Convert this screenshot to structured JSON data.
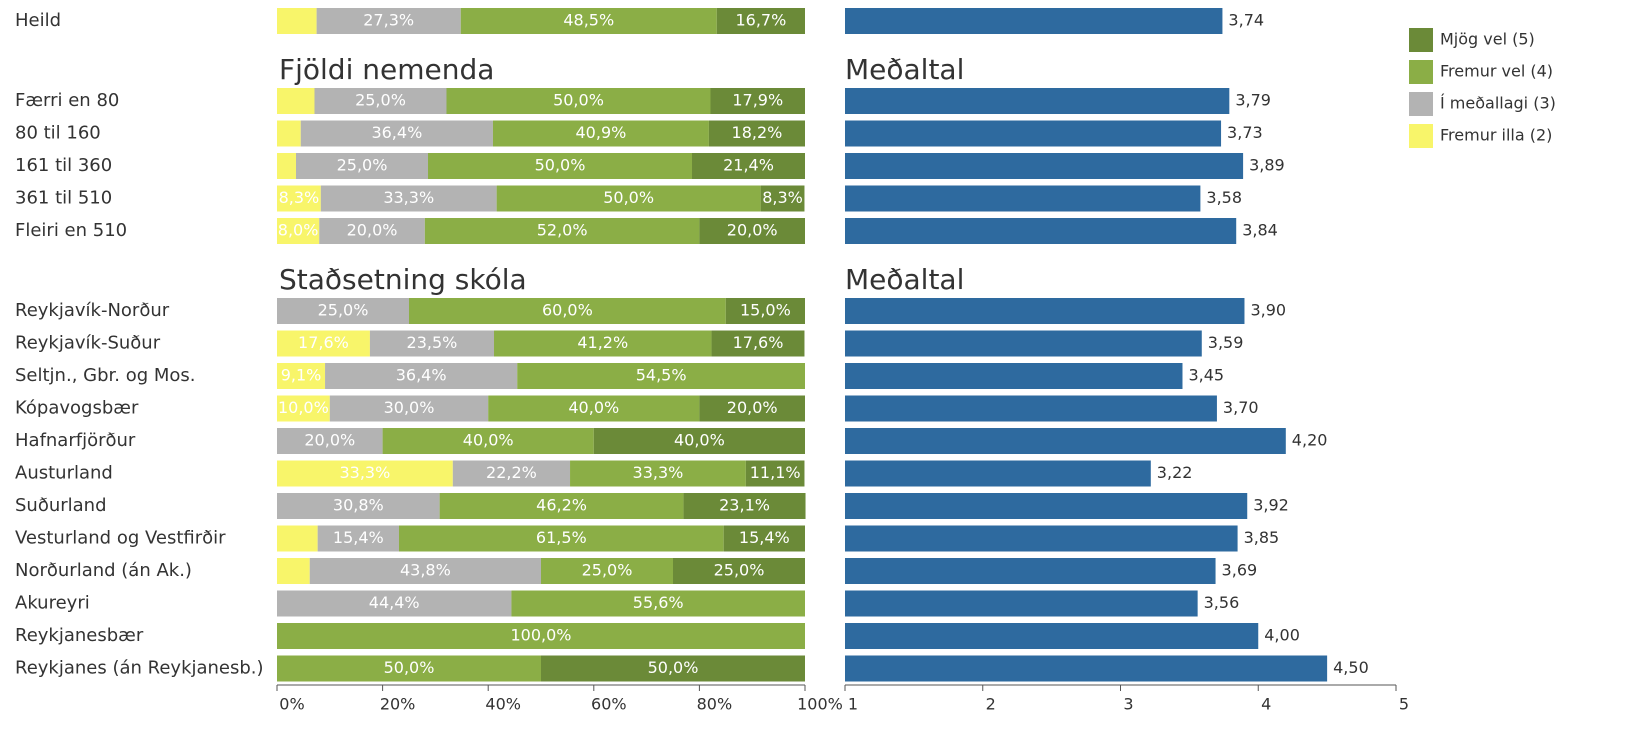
{
  "chart_data": [
    {
      "type": "stacked-bar-horizontal",
      "groups": [
        {
          "categories": [
            "Heild"
          ]
        },
        {
          "title": "Fjöldi nemenda",
          "categories": [
            "Færri en 80",
            "80 til 160",
            "161 til 360",
            "361 til 510",
            "Fleiri en 510"
          ]
        },
        {
          "title": "Staðsetning skóla",
          "categories": [
            "Reykjavík-Norður",
            "Reykjavík-Suður",
            "Seltjn., Gbr. og Mos.",
            "Kópavogsbær",
            "Hafnarfjörður",
            "Austurland",
            "Suðurland",
            "Vesturland og Vestfirðir",
            "Norðurland (án Ak.)",
            "Akureyri",
            "Reykjanesbær",
            "Reykjanes (án Reykjanesb.)"
          ]
        }
      ],
      "series": [
        {
          "name": "Fremur illa (2)",
          "color": "#f8f56a",
          "values": [
            7.5,
            7.1,
            4.5,
            3.6,
            8.3,
            8.0,
            null,
            17.6,
            9.1,
            10.0,
            null,
            33.3,
            null,
            7.7,
            6.2,
            null,
            null,
            null
          ],
          "value_labels": [
            null,
            null,
            null,
            null,
            "8,3%",
            "8,0%",
            null,
            "17,6%",
            "9,1%",
            "10,0%",
            null,
            "33,3%",
            null,
            null,
            null,
            null,
            null,
            null
          ]
        },
        {
          "name": "Í meðallagi (3)",
          "color": "#b3b3b3",
          "values": [
            27.3,
            25.0,
            36.4,
            25.0,
            33.3,
            20.0,
            25.0,
            23.5,
            36.4,
            30.0,
            20.0,
            22.2,
            30.8,
            15.4,
            43.8,
            44.4,
            null,
            null
          ],
          "value_labels": [
            "27,3%",
            "25,0%",
            "36,4%",
            "25,0%",
            "33,3%",
            "20,0%",
            "25,0%",
            "23,5%",
            "36,4%",
            "30,0%",
            "20,0%",
            "22,2%",
            "30,8%",
            "15,4%",
            "43,8%",
            "44,4%",
            null,
            null
          ]
        },
        {
          "name": "Fremur vel (4)",
          "color": "#8bae46",
          "values": [
            48.5,
            50.0,
            40.9,
            50.0,
            50.0,
            52.0,
            60.0,
            41.2,
            54.5,
            40.0,
            40.0,
            33.3,
            46.2,
            61.5,
            25.0,
            55.6,
            100.0,
            50.0
          ],
          "value_labels": [
            "48,5%",
            "50,0%",
            "40,9%",
            "50,0%",
            "50,0%",
            "52,0%",
            "60,0%",
            "41,2%",
            "54,5%",
            "40,0%",
            "40,0%",
            "33,3%",
            "46,2%",
            "61,5%",
            "25,0%",
            "55,6%",
            "100,0%",
            "50,0%"
          ]
        },
        {
          "name": "Mjög vel (5)",
          "color": "#6b8a38",
          "values": [
            16.7,
            17.9,
            18.2,
            21.4,
            8.3,
            20.0,
            15.0,
            17.6,
            null,
            20.0,
            40.0,
            11.1,
            23.1,
            15.4,
            25.0,
            null,
            null,
            50.0
          ],
          "value_labels": [
            "16,7%",
            "17,9%",
            "18,2%",
            "21,4%",
            "8,3%",
            "20,0%",
            "15,0%",
            "17,6%",
            null,
            "20,0%",
            "40,0%",
            "11,1%",
            "23,1%",
            "15,4%",
            "25,0%",
            null,
            null,
            "50,0%"
          ]
        }
      ],
      "xlim": [
        0,
        100
      ],
      "xticks": [
        {
          "value": 0,
          "label": "0%"
        },
        {
          "value": 20,
          "label": "20%"
        },
        {
          "value": 40,
          "label": "40%"
        },
        {
          "value": 60,
          "label": "60%"
        },
        {
          "value": 80,
          "label": "80%"
        },
        {
          "value": 100,
          "label": "100%"
        }
      ],
      "legend": "top-right"
    },
    {
      "type": "bar-horizontal",
      "group_titles": [
        "Meðaltal",
        "Meðaltal"
      ],
      "color": "#2e6a9f",
      "values": [
        3.74,
        3.79,
        3.73,
        3.89,
        3.58,
        3.84,
        3.9,
        3.59,
        3.45,
        3.7,
        4.2,
        3.22,
        3.92,
        3.85,
        3.69,
        3.56,
        4.0,
        4.5
      ],
      "value_labels": [
        "3,74",
        "3,79",
        "3,73",
        "3,89",
        "3,58",
        "3,84",
        "3,90",
        "3,59",
        "3,45",
        "3,70",
        "4,20",
        "3,22",
        "3,92",
        "3,85",
        "3,69",
        "3,56",
        "4,00",
        "4,50"
      ],
      "xlim": [
        1,
        5
      ],
      "xticks": [
        1,
        2,
        3,
        4,
        5
      ]
    }
  ]
}
